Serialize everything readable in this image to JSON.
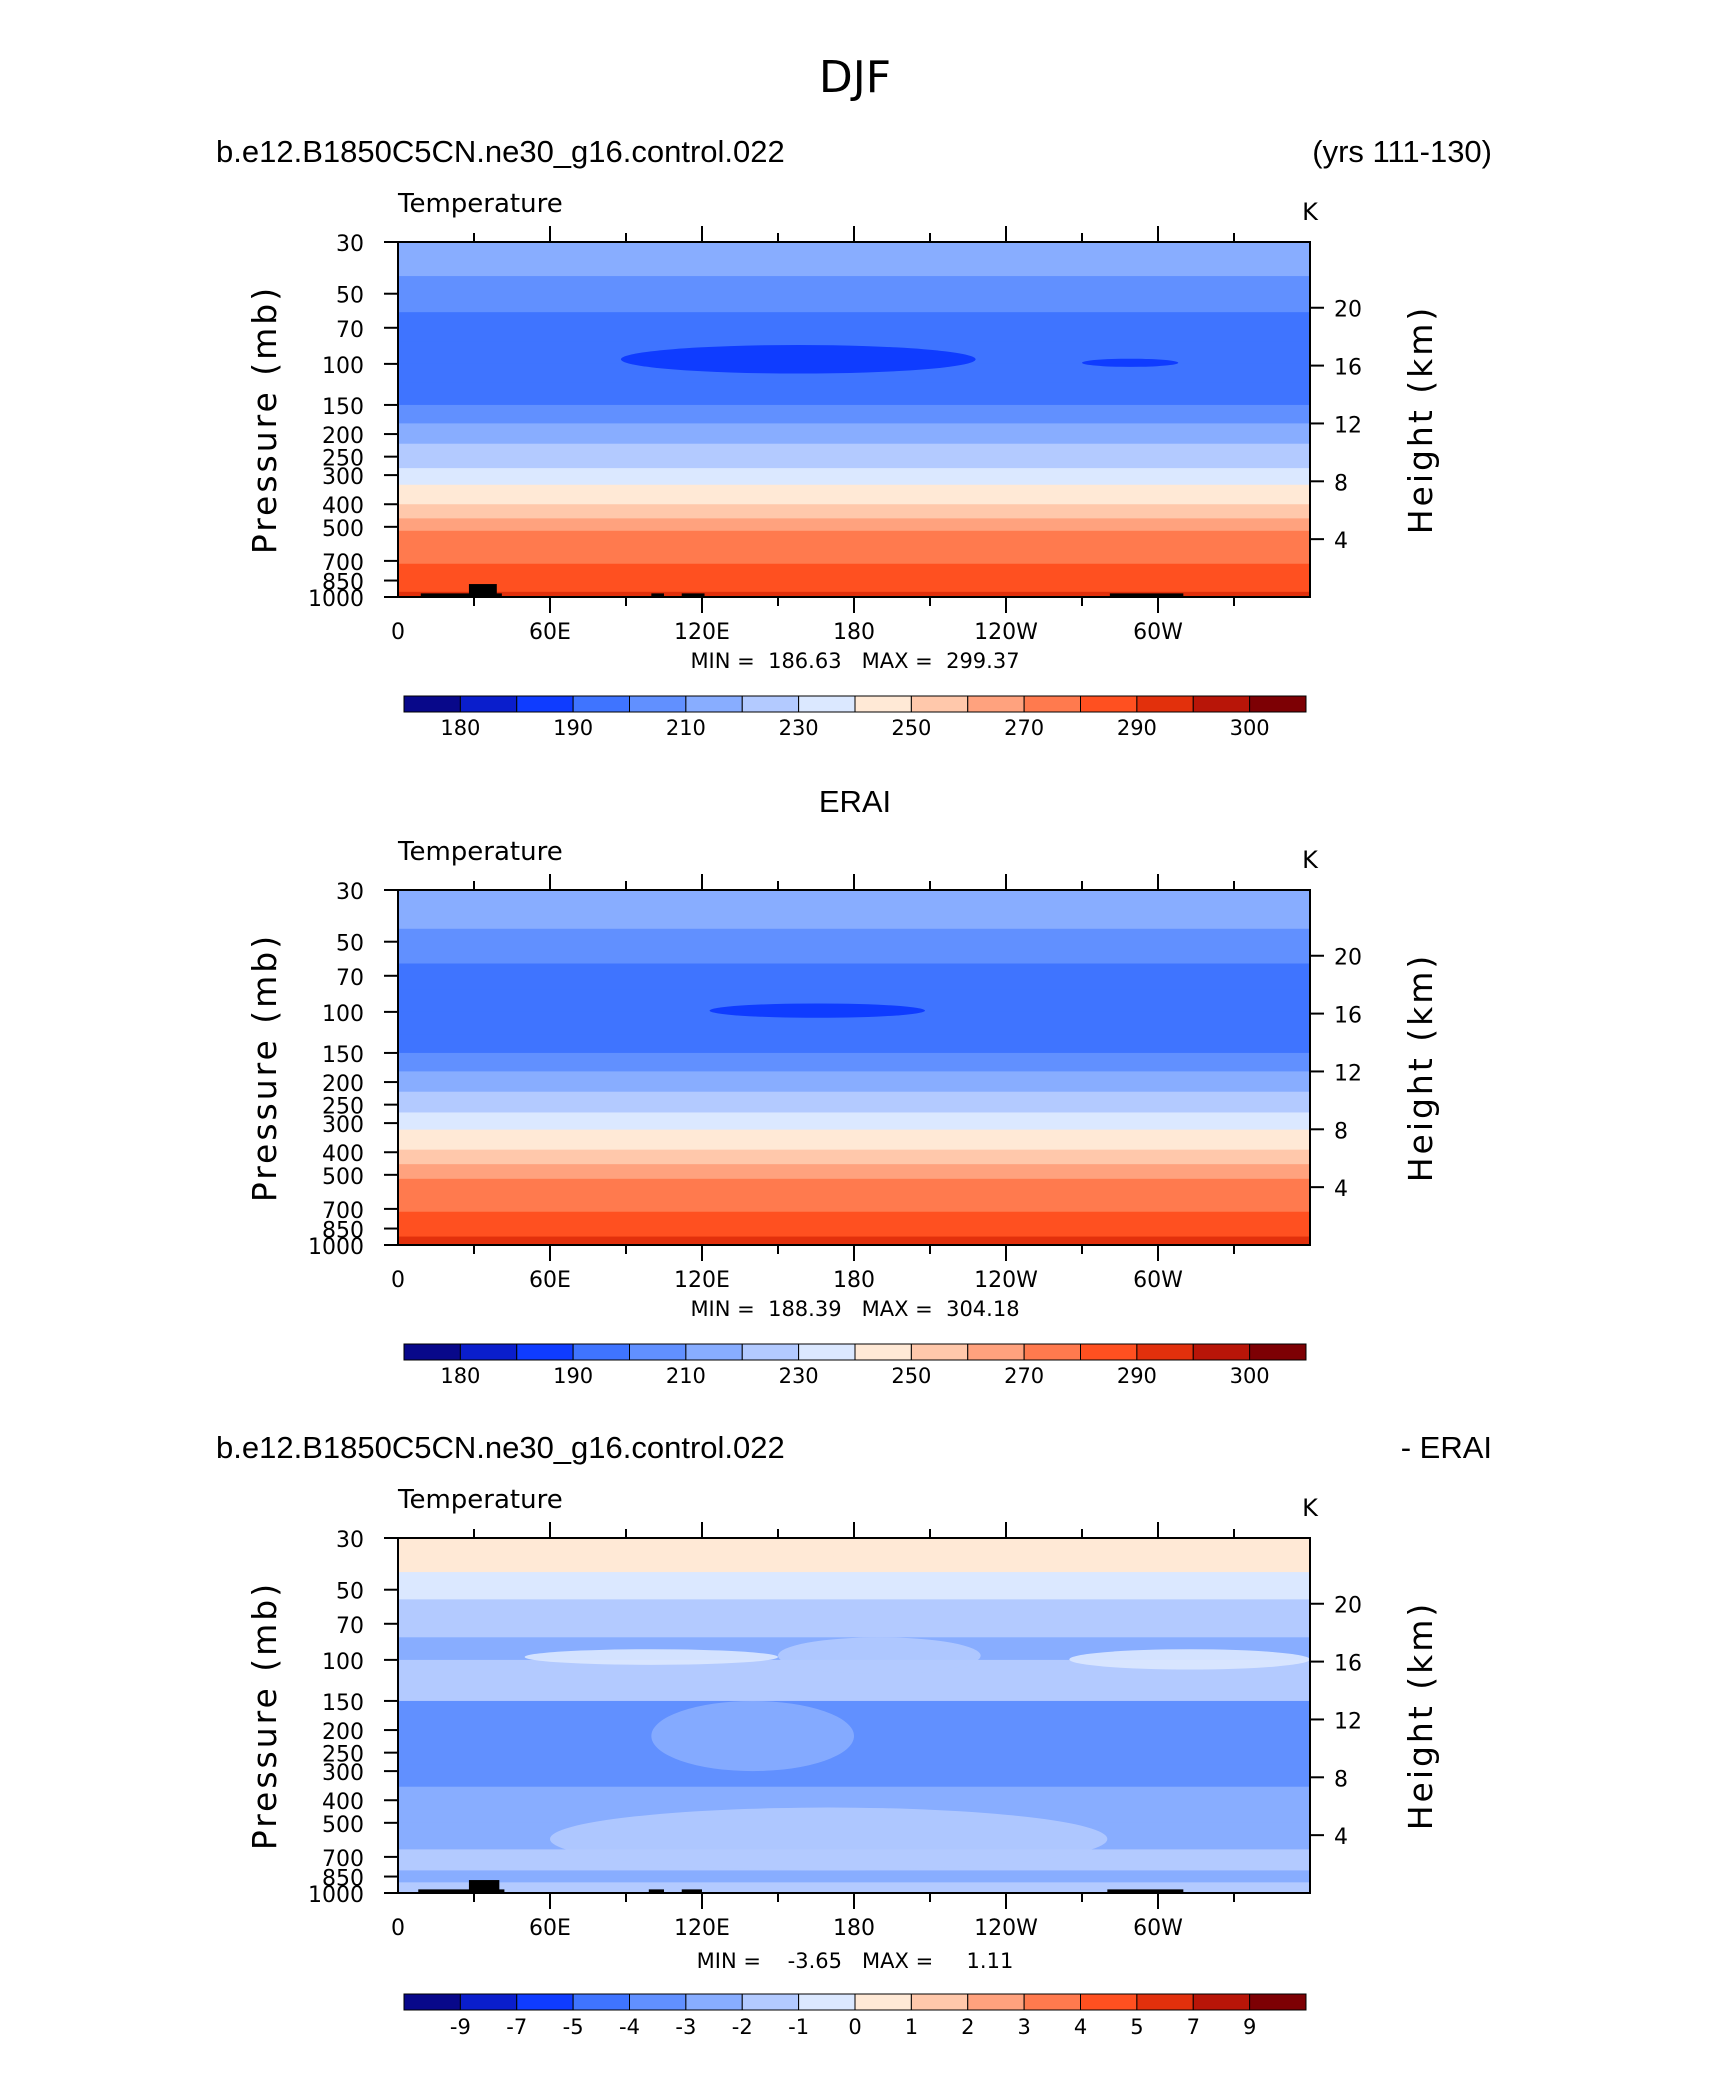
{
  "figure_title": "DJF",
  "chart_data": [
    {
      "type": "heatmap",
      "panel_id": "model",
      "title_left": "b.e12.B1850C5CN.ne30_g16.control.022",
      "title_right": "(yrs 111-130)",
      "variable": "Temperature",
      "units": "K",
      "ylabel": "Pressure (mb)",
      "ylabel_right": "Height (km)",
      "y_ticks": [
        "30",
        "50",
        "70",
        "100",
        "150",
        "200",
        "250",
        "300",
        "400",
        "500",
        "700",
        "850",
        "1000"
      ],
      "y_tick_values": [
        30,
        50,
        70,
        100,
        150,
        200,
        250,
        300,
        400,
        500,
        700,
        850,
        1000
      ],
      "y_right_ticks": [
        "20",
        "16",
        "12",
        "8",
        "4"
      ],
      "y_right_values": [
        20,
        16,
        12,
        8,
        4
      ],
      "x_ticks": [
        "0",
        "60E",
        "120E",
        "180",
        "120W",
        "60W"
      ],
      "x_tick_values": [
        0,
        60,
        120,
        180,
        240,
        300
      ],
      "xlim": [
        0,
        360
      ],
      "ylim": [
        1000,
        30
      ],
      "stats_text": "MIN =  186.63   MAX =  299.37",
      "colorbar_ticks": [
        "180",
        "190",
        "210",
        "230",
        "250",
        "270",
        "290",
        "300"
      ],
      "levels": [
        180,
        185,
        190,
        200,
        210,
        220,
        230,
        240,
        250,
        260,
        270,
        280,
        290,
        295,
        300
      ],
      "layers": [
        {
          "p": 30,
          "temp": 215
        },
        {
          "p": 42,
          "temp": 205
        },
        {
          "p": 60,
          "temp": 198
        },
        {
          "p": 80,
          "temp": 196
        },
        {
          "p": 100,
          "temp": 196
        },
        {
          "p": 120,
          "temp": 197
        },
        {
          "p": 150,
          "temp": 203
        },
        {
          "p": 180,
          "temp": 212
        },
        {
          "p": 220,
          "temp": 222
        },
        {
          "p": 280,
          "temp": 233
        },
        {
          "p": 330,
          "temp": 245
        },
        {
          "p": 400,
          "temp": 253
        },
        {
          "p": 460,
          "temp": 263
        },
        {
          "p": 520,
          "temp": 270
        },
        {
          "p": 620,
          "temp": 276
        },
        {
          "p": 720,
          "temp": 282
        },
        {
          "p": 850,
          "temp": 289
        },
        {
          "p": 950,
          "temp": 293
        },
        {
          "p": 1000,
          "temp": 296
        }
      ],
      "cold_core": [
        {
          "lon_start": 88,
          "lon_end": 228,
          "p_top": 83,
          "p_bottom": 110,
          "temp": 188
        },
        {
          "lon_start": 270,
          "lon_end": 308,
          "p_top": 95,
          "p_bottom": 103,
          "temp": 188
        }
      ],
      "topography": [
        {
          "lon_start": 9,
          "lon_end": 41,
          "p": 965
        },
        {
          "lon_start": 28,
          "lon_end": 39,
          "p": 880
        },
        {
          "lon_start": 100,
          "lon_end": 105,
          "p": 965
        },
        {
          "lon_start": 112,
          "lon_end": 121,
          "p": 965
        },
        {
          "lon_start": 281,
          "lon_end": 310,
          "p": 965
        }
      ]
    },
    {
      "type": "heatmap",
      "panel_id": "obs",
      "title_center": "ERAI",
      "variable": "Temperature",
      "units": "K",
      "ylabel": "Pressure (mb)",
      "ylabel_right": "Height (km)",
      "y_ticks": [
        "30",
        "50",
        "70",
        "100",
        "150",
        "200",
        "250",
        "300",
        "400",
        "500",
        "700",
        "850",
        "1000"
      ],
      "y_tick_values": [
        30,
        50,
        70,
        100,
        150,
        200,
        250,
        300,
        400,
        500,
        700,
        850,
        1000
      ],
      "y_right_ticks": [
        "20",
        "16",
        "12",
        "8",
        "4"
      ],
      "y_right_values": [
        20,
        16,
        12,
        8,
        4
      ],
      "x_ticks": [
        "0",
        "60E",
        "120E",
        "180",
        "120W",
        "60W"
      ],
      "x_tick_values": [
        0,
        60,
        120,
        180,
        240,
        300
      ],
      "xlim": [
        0,
        360
      ],
      "ylim": [
        1000,
        30
      ],
      "stats_text": "MIN =  188.39   MAX =  304.18",
      "colorbar_ticks": [
        "180",
        "190",
        "210",
        "230",
        "250",
        "270",
        "290",
        "300"
      ],
      "levels": [
        180,
        185,
        190,
        200,
        210,
        220,
        230,
        240,
        250,
        260,
        270,
        280,
        290,
        295,
        300
      ],
      "layers": [
        {
          "p": 30,
          "temp": 212
        },
        {
          "p": 44,
          "temp": 205
        },
        {
          "p": 62,
          "temp": 198
        },
        {
          "p": 80,
          "temp": 196
        },
        {
          "p": 100,
          "temp": 196
        },
        {
          "p": 125,
          "temp": 197
        },
        {
          "p": 150,
          "temp": 203
        },
        {
          "p": 180,
          "temp": 212
        },
        {
          "p": 220,
          "temp": 222
        },
        {
          "p": 270,
          "temp": 233
        },
        {
          "p": 320,
          "temp": 245
        },
        {
          "p": 390,
          "temp": 253
        },
        {
          "p": 450,
          "temp": 263
        },
        {
          "p": 520,
          "temp": 270
        },
        {
          "p": 620,
          "temp": 276
        },
        {
          "p": 720,
          "temp": 282
        },
        {
          "p": 830,
          "temp": 289
        },
        {
          "p": 920,
          "temp": 293
        },
        {
          "p": 1000,
          "temp": 297
        }
      ],
      "cold_core": [
        {
          "lon_start": 123,
          "lon_end": 208,
          "p_top": 92,
          "p_bottom": 106,
          "temp": 188
        }
      ],
      "topography": []
    },
    {
      "type": "heatmap",
      "panel_id": "difference",
      "title_left": "b.e12.B1850C5CN.ne30_g16.control.022",
      "title_right": "- ERAI",
      "variable": "Temperature",
      "units": "K",
      "ylabel": "Pressure (mb)",
      "ylabel_right": "Height (km)",
      "y_ticks": [
        "30",
        "50",
        "70",
        "100",
        "150",
        "200",
        "250",
        "300",
        "400",
        "500",
        "700",
        "850",
        "1000"
      ],
      "y_tick_values": [
        30,
        50,
        70,
        100,
        150,
        200,
        250,
        300,
        400,
        500,
        700,
        850,
        1000
      ],
      "y_right_ticks": [
        "20",
        "16",
        "12",
        "8",
        "4"
      ],
      "y_right_values": [
        20,
        16,
        12,
        8,
        4
      ],
      "x_ticks": [
        "0",
        "60E",
        "120E",
        "180",
        "120W",
        "60W"
      ],
      "x_tick_values": [
        0,
        60,
        120,
        180,
        240,
        300
      ],
      "xlim": [
        0,
        360
      ],
      "ylim": [
        1000,
        30
      ],
      "stats_text": "MIN =    -3.65   MAX =     1.11",
      "colorbar_ticks": [
        "-9",
        "-7",
        "-5",
        "-4",
        "-3",
        "-2",
        "-1",
        "0",
        "1",
        "2",
        "3",
        "4",
        "5",
        "7",
        "9"
      ],
      "levels": [
        -9,
        -7,
        -5,
        -4,
        -3,
        -2,
        -1,
        0,
        1,
        2,
        3,
        4,
        5,
        7,
        9
      ],
      "layers": [
        {
          "p": 30,
          "temp": 0.5
        },
        {
          "p": 42,
          "temp": -0.5
        },
        {
          "p": 55,
          "temp": -1.5
        },
        {
          "p": 80,
          "temp": -2.5
        },
        {
          "p": 100,
          "temp": -1.5
        },
        {
          "p": 120,
          "temp": -1.5
        },
        {
          "p": 150,
          "temp": -3.5
        },
        {
          "p": 200,
          "temp": -3.5
        },
        {
          "p": 280,
          "temp": -3.5
        },
        {
          "p": 350,
          "temp": -2.5
        },
        {
          "p": 500,
          "temp": -2.5
        },
        {
          "p": 650,
          "temp": -1.5
        },
        {
          "p": 800,
          "temp": -2.5
        },
        {
          "p": 900,
          "temp": -1.5
        },
        {
          "p": 1000,
          "temp": -1.5
        }
      ],
      "patches": [
        {
          "lon_start": 150,
          "lon_end": 230,
          "p_top": 80,
          "p_bottom": 115,
          "temp": -1.5
        },
        {
          "lon_start": 265,
          "lon_end": 360,
          "p_top": 90,
          "p_bottom": 110,
          "temp": -0.5
        },
        {
          "lon_start": 50,
          "lon_end": 150,
          "p_top": 90,
          "p_bottom": 105,
          "temp": -0.5
        },
        {
          "lon_start": 100,
          "lon_end": 180,
          "p_top": 150,
          "p_bottom": 300,
          "temp": -2.5
        },
        {
          "lon_start": 60,
          "lon_end": 280,
          "p_top": 430,
          "p_bottom": 800,
          "temp": -1.5
        },
        {
          "lon_start": 160,
          "lon_end": 190,
          "p_top": 30,
          "p_bottom": 36,
          "temp": 0.5
        }
      ],
      "topography": [
        {
          "lon_start": 8,
          "lon_end": 42,
          "p": 965
        },
        {
          "lon_start": 28,
          "lon_end": 40,
          "p": 880
        },
        {
          "lon_start": 99,
          "lon_end": 105,
          "p": 965
        },
        {
          "lon_start": 112,
          "lon_end": 120,
          "p": 965
        },
        {
          "lon_start": 280,
          "lon_end": 310,
          "p": 965
        }
      ]
    }
  ]
}
